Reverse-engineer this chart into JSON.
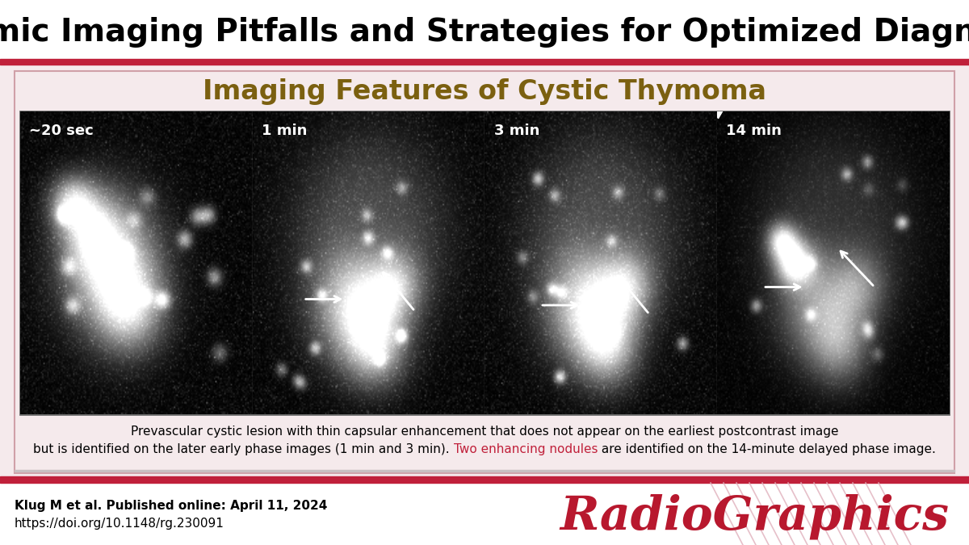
{
  "title": "Thymic Imaging Pitfalls and Strategies for Optimized Diagnosis",
  "subtitle": "Imaging Features of Cystic Thymoma",
  "title_color": "#000000",
  "subtitle_color": "#7B6010",
  "bg_color": "#FFFFFF",
  "panel_bg": "#F5EAEC",
  "red_line_color": "#C0203A",
  "border_color": "#888888",
  "time_labels": [
    "~20 sec",
    "1 min",
    "3 min",
    "14 min"
  ],
  "caption_line1": "Prevascular cystic lesion with thin capsular enhancement that does not appear on the earliest postcontrast image",
  "caption_line2_part1": "but is identified on the later early phase images (1 min and 3 min). ",
  "caption_line2_red": "Two enhancing nodules",
  "caption_line2_part3": " are identified on the 14-minute delayed phase image.",
  "ref_bold": "Klug M et al. Published online: April 11, 2024",
  "ref_normal": "https://doi.org/10.1148/rg.230091",
  "journal": "RadioGraphics",
  "journal_color": "#B8182E",
  "caption_color": "#000000",
  "caption_red": "#C0203A",
  "ref_color": "#000000",
  "title_fontsize": 28,
  "subtitle_fontsize": 24,
  "time_fontsize": 13,
  "caption_fontsize": 11,
  "ref_fontsize": 11,
  "journal_fontsize": 42
}
